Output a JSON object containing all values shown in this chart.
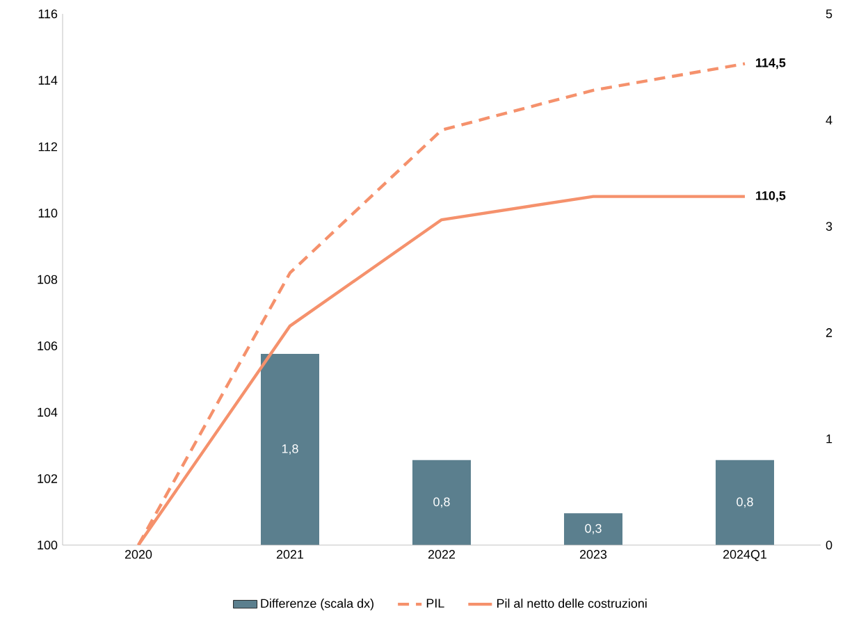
{
  "chart_data": {
    "type": "line",
    "categories": [
      "2020",
      "2021",
      "2022",
      "2023",
      "2024Q1"
    ],
    "series": [
      {
        "name": "Differenze (scala dx)",
        "type": "bar",
        "axis": "y2",
        "color": "#5b7f8e",
        "values": [
          null,
          1.8,
          0.8,
          0.3,
          0.8
        ],
        "value_labels": [
          null,
          "1,8",
          "0,8",
          "0,3",
          "0,8"
        ]
      },
      {
        "name": "PIL",
        "color": "#f5916c",
        "line_style": "dashed",
        "values": [
          100,
          108.2,
          112.5,
          113.7,
          114.5
        ]
      },
      {
        "name": "Pil al netto delle costruzioni",
        "color": "#f5916c",
        "line_style": "solid",
        "values": [
          100,
          106.6,
          109.8,
          110.5,
          110.5
        ]
      }
    ],
    "ylim": [
      100,
      116
    ],
    "yticks": [
      100,
      102,
      104,
      106,
      108,
      110,
      112,
      114,
      116
    ],
    "y2lim": [
      0,
      5
    ],
    "y2ticks": [
      0,
      1,
      2,
      3,
      4,
      5
    ],
    "annotations": [
      {
        "text": "114,5",
        "x": "2024Q1",
        "y": 114.5
      },
      {
        "text": "110,5",
        "x": "2024Q1",
        "y": 110.5
      }
    ],
    "legend": "bottom",
    "grid": false
  }
}
